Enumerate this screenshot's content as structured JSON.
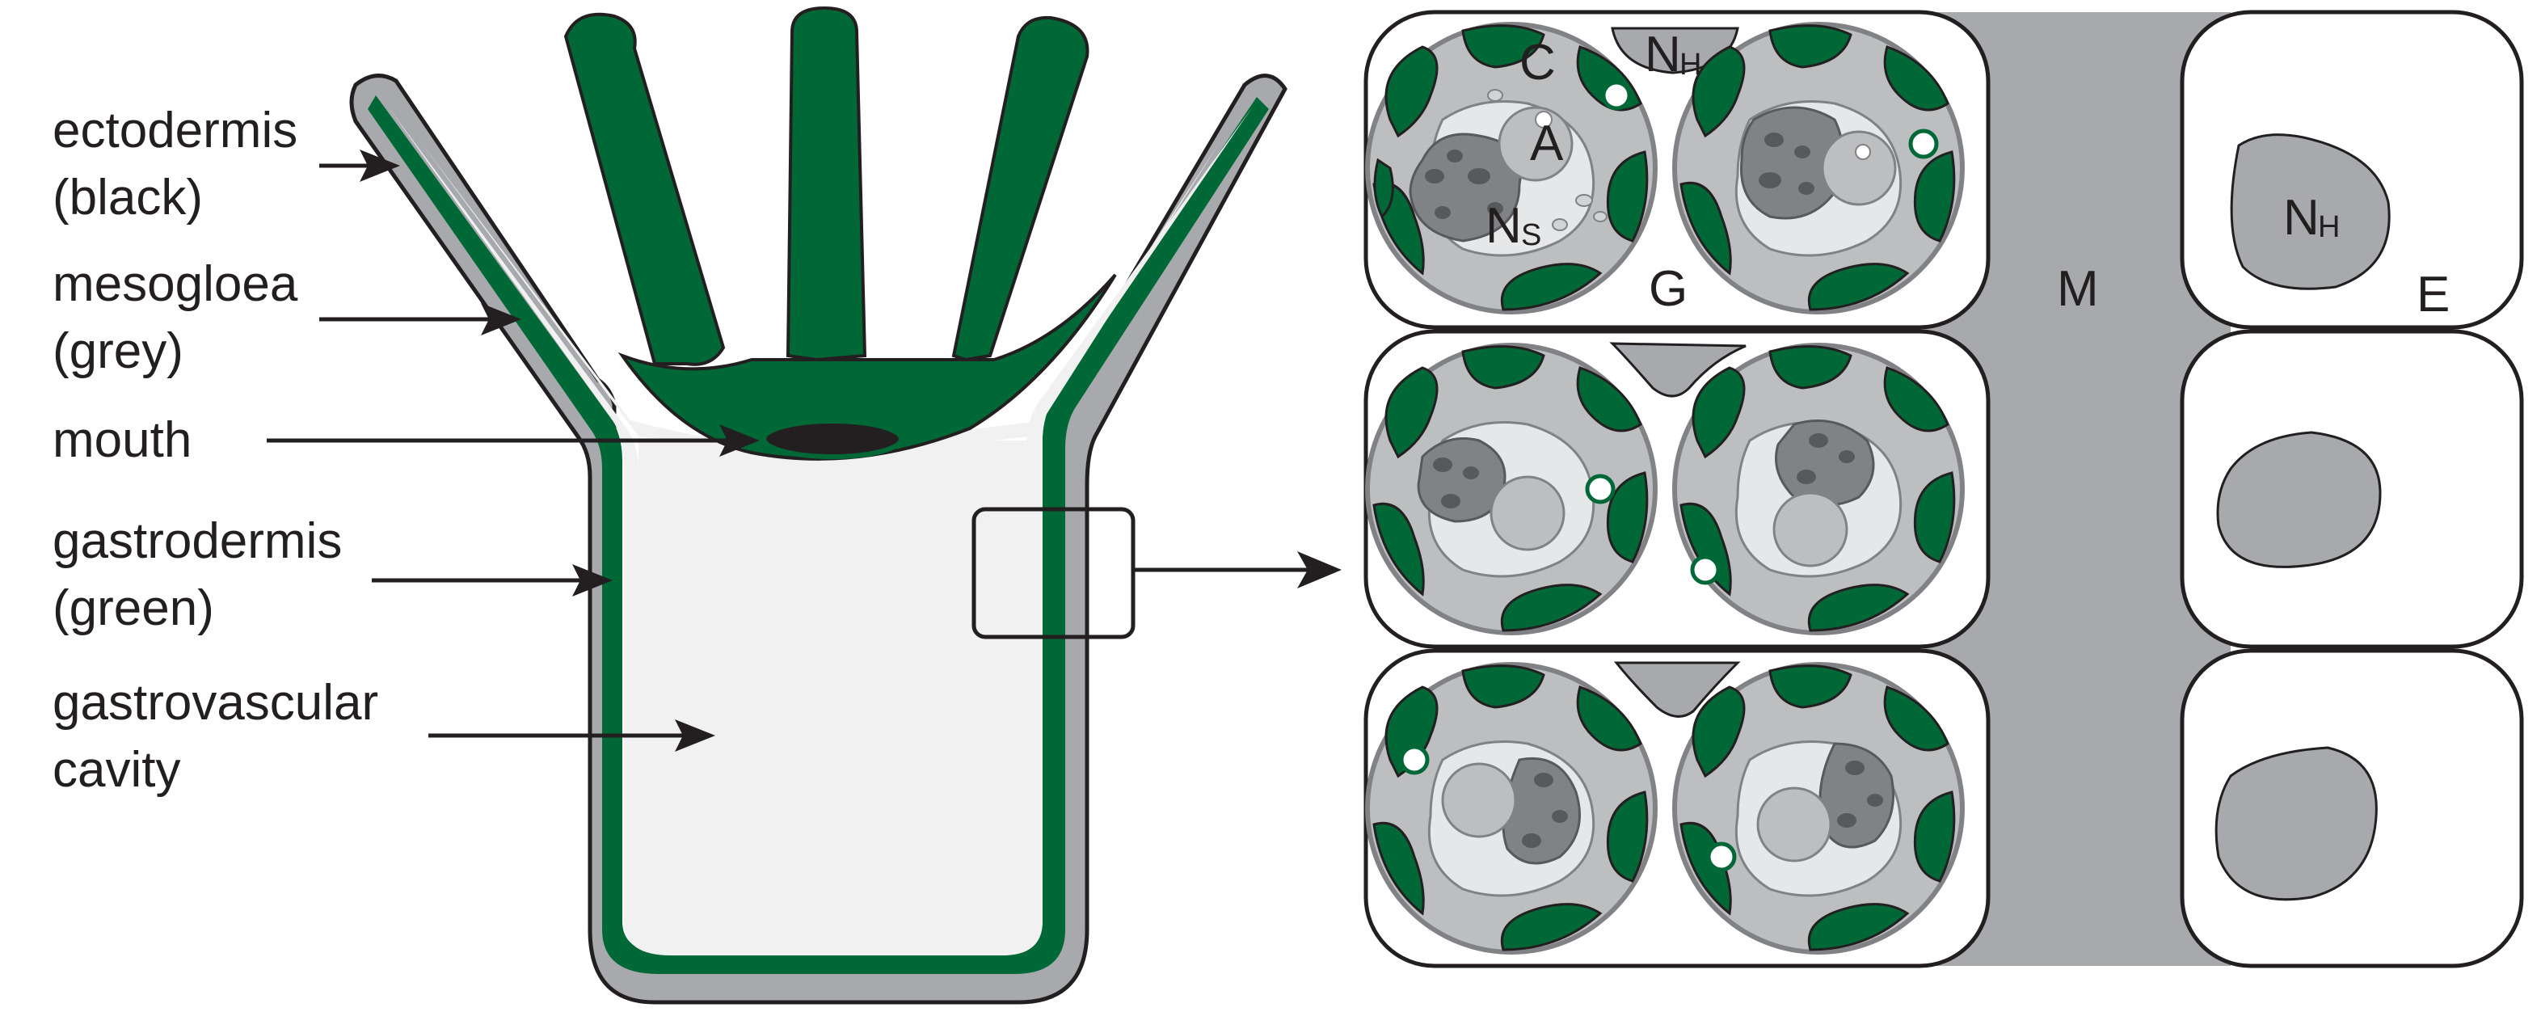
{
  "labels": {
    "ectodermis": [
      "ectodermis",
      "(black)"
    ],
    "mesogloea": [
      "mesogloea",
      "(grey)"
    ],
    "mouth": "mouth",
    "gastrodermis": [
      "gastrodermis",
      "(green)"
    ],
    "cavity": [
      "gastrovascular",
      "cavity"
    ]
  },
  "cell_labels": {
    "chloroplast": "C",
    "nucleus_host_main": "N",
    "nucleus_host_sub": "H",
    "accumulation_body": "A",
    "nucleus_symbiont_main": "N",
    "nucleus_symbiont_sub": "S",
    "gastrodermis": "G",
    "mesogloea": "M",
    "epidermis": "E",
    "epidermal_nucleus_main": "N",
    "epidermal_nucleus_sub": "H"
  },
  "colors": {
    "gastrodermis_green": "#006837",
    "mesogloea_grey": "#a7a9ac",
    "cavity": "#f1f1f2",
    "outline": "#231f20",
    "cell_grey": "#bcbec0",
    "dark_grey": "#808285",
    "cytoplasm": "#d1d3d4"
  }
}
